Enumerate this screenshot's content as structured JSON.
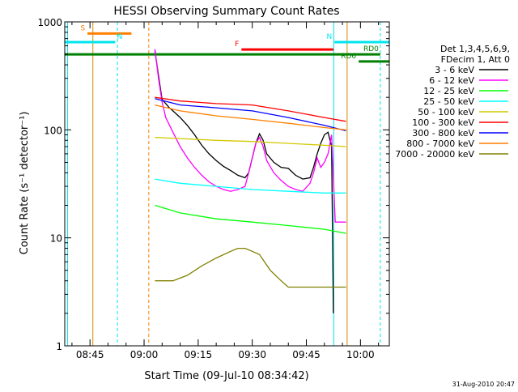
{
  "chart_data": {
    "type": "line",
    "title": "HESSI Observing Summary Count Rates",
    "xlabel": "Start Time (09-Jul-10 08:34:42)",
    "ylabel": "Count Rate (s⁻¹ detector⁻¹)",
    "x_unit": "minutes of day",
    "x_range": [
      518,
      608
    ],
    "y_scale": "log",
    "ylim": [
      1,
      1000
    ],
    "x_ticks": [
      {
        "t": 525,
        "label": "08:45"
      },
      {
        "t": 540,
        "label": "09:00"
      },
      {
        "t": 555,
        "label": "09:15"
      },
      {
        "t": 570,
        "label": "09:30"
      },
      {
        "t": 585,
        "label": "09:45"
      },
      {
        "t": 600,
        "label": "10:00"
      }
    ],
    "y_ticks": [
      {
        "v": 1,
        "label": "1"
      },
      {
        "v": 10,
        "label": "10"
      },
      {
        "v": 100,
        "label": "100"
      },
      {
        "v": 1000,
        "label": "1000"
      }
    ],
    "legend_header": [
      "Det 1,3,4,5,6,9,",
      "FDecim 1, Att 0"
    ],
    "legend_position": "right",
    "footer_timestamp": "31-Aug-2010 20:47",
    "flags": [
      {
        "label": "S",
        "color": "#ff7f00",
        "start": 524.3,
        "end": 536.5,
        "value": 780
      },
      {
        "label": "N",
        "color": "#00e5ee",
        "start": 518,
        "end": 532.0,
        "value": 650,
        "label_at": 532.5
      },
      {
        "label": "N",
        "color": "#00e5ee",
        "start": 592.8,
        "end": 608,
        "value": 650
      },
      {
        "label": "F",
        "color": "#ff0000",
        "start": 567.0,
        "end": 592.5,
        "value": 555
      },
      {
        "label": "RD0",
        "color": "#008000",
        "start": 518,
        "end": 605.5,
        "value": 500
      },
      {
        "label": "RD6",
        "color": "#008000",
        "start": 599.5,
        "end": 608,
        "value": 430
      }
    ],
    "vlines": [
      {
        "t": 518.8,
        "color": "#00e5ee",
        "dashed": false
      },
      {
        "t": 525.8,
        "color": "#d08a00",
        "dashed": false
      },
      {
        "t": 532.6,
        "color": "#00e5ee",
        "dashed": true
      },
      {
        "t": 541.3,
        "color": "#ff7f00",
        "dashed": true
      },
      {
        "t": 592.6,
        "color": "#00e5ee",
        "dashed": false
      },
      {
        "t": 596.3,
        "color": "#d08a00",
        "dashed": false
      },
      {
        "t": 605.5,
        "color": "#00e5ee",
        "dashed": true
      }
    ],
    "series": [
      {
        "name": "3 - 6 keV",
        "color": "#000000",
        "x": [
          543,
          544,
          545,
          546,
          547,
          548,
          550,
          552,
          554,
          556,
          558,
          560,
          562,
          564,
          566,
          568,
          569,
          570,
          571,
          572,
          573,
          574,
          576,
          578,
          580,
          582,
          584,
          586,
          587,
          588,
          589,
          590,
          591,
          592,
          592.5
        ],
        "y": [
          540,
          320,
          190,
          175,
          160,
          150,
          130,
          110,
          90,
          72,
          60,
          52,
          46,
          42,
          38,
          36,
          40,
          55,
          75,
          92,
          80,
          60,
          50,
          45,
          44,
          38,
          35,
          36,
          45,
          60,
          75,
          90,
          95,
          70,
          2
        ]
      },
      {
        "name": "6 - 12 keV",
        "color": "#ff00ff",
        "x": [
          543,
          544,
          545,
          546,
          548,
          550,
          552,
          554,
          556,
          558,
          560,
          562,
          564,
          566,
          568,
          569,
          570,
          571,
          572,
          573,
          574,
          576,
          578,
          580,
          582,
          584,
          586,
          587,
          588,
          589,
          590,
          591,
          592,
          593,
          596
        ],
        "y": [
          560,
          300,
          180,
          130,
          95,
          70,
          55,
          45,
          38,
          33,
          30,
          28,
          27,
          28,
          30,
          40,
          55,
          75,
          85,
          70,
          52,
          40,
          34,
          30,
          28,
          27,
          32,
          40,
          55,
          45,
          50,
          60,
          90,
          14,
          14
        ]
      },
      {
        "name": "12 - 25 keV",
        "color": "#00ff00",
        "x": [
          543,
          550,
          560,
          570,
          580,
          590,
          596
        ],
        "y": [
          20,
          17,
          15,
          14,
          13,
          12,
          11
        ]
      },
      {
        "name": "25 - 50 keV",
        "color": "#00ffff",
        "x": [
          543,
          550,
          560,
          570,
          580,
          590,
          596
        ],
        "y": [
          35,
          32,
          30,
          28,
          27,
          26,
          26
        ]
      },
      {
        "name": "50 - 100 keV",
        "color": "#d4c800",
        "x": [
          543,
          550,
          560,
          570,
          580,
          590,
          596
        ],
        "y": [
          85,
          83,
          80,
          78,
          75,
          72,
          70
        ]
      },
      {
        "name": "100 - 300 keV",
        "color": "#ff0000",
        "x": [
          543,
          550,
          560,
          570,
          580,
          590,
          596
        ],
        "y": [
          200,
          185,
          175,
          170,
          150,
          130,
          120
        ]
      },
      {
        "name": "300 - 800 keV",
        "color": "#0000ff",
        "x": [
          543,
          550,
          560,
          570,
          580,
          590,
          596
        ],
        "y": [
          195,
          170,
          160,
          150,
          130,
          110,
          98
        ]
      },
      {
        "name": "800 - 7000 keV",
        "color": "#ff7f00",
        "x": [
          543,
          550,
          560,
          570,
          580,
          590,
          596
        ],
        "y": [
          170,
          150,
          135,
          125,
          115,
          105,
          100
        ]
      },
      {
        "name": "7000 - 20000 keV",
        "color": "#808000",
        "x": [
          543,
          548,
          552,
          556,
          560,
          564,
          566,
          568,
          570,
          572,
          575,
          578,
          580,
          584,
          588,
          592,
          596
        ],
        "y": [
          4,
          4,
          4.5,
          5.5,
          6.5,
          7.5,
          8,
          8,
          7.5,
          7,
          5,
          4,
          3.5,
          3.5,
          3.5,
          3.5,
          3.5
        ]
      }
    ]
  }
}
